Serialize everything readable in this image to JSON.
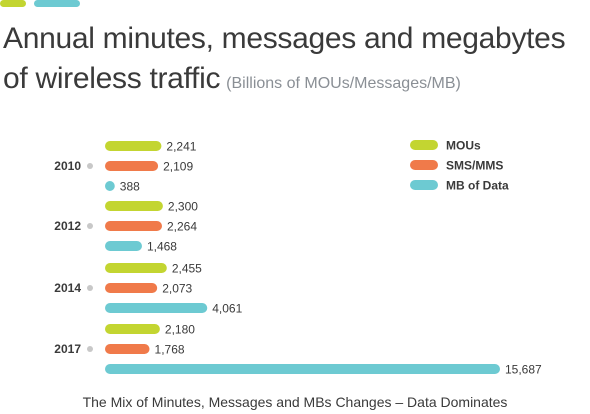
{
  "header": {
    "title_line1": "Annual minutes, messages and megabytes",
    "title_line2": "of wireless traffic",
    "subtitle": "(Billions of MOUs/Messages/MB)"
  },
  "footer": {
    "caption": "The Mix of Minutes, Messages and MBs Changes – Data Dominates"
  },
  "accent_colors": [
    "#c3d531",
    "#6dcad2"
  ],
  "chart_data": {
    "type": "bar",
    "orientation": "horizontal",
    "title": "Annual minutes, messages and megabytes of wireless traffic",
    "subtitle": "(Billions of MOUs/Messages/MB)",
    "categories": [
      "2010",
      "2012",
      "2014",
      "2017"
    ],
    "series": [
      {
        "name": "MOUs",
        "color": "#c3d531",
        "values": [
          2241,
          2300,
          2455,
          2180
        ],
        "labels": [
          "2,241",
          "2,300",
          "2,455",
          "2,180"
        ]
      },
      {
        "name": "SMS/MMS",
        "color": "#f07a4a",
        "values": [
          2109,
          2264,
          2073,
          1768
        ],
        "labels": [
          "2,109",
          "2,264",
          "2,073",
          "1,768"
        ]
      },
      {
        "name": "MB of Data",
        "color": "#6dcad2",
        "values": [
          388,
          1468,
          4061,
          15687
        ],
        "labels": [
          "388",
          "1,468",
          "4,061",
          "15,687"
        ]
      }
    ],
    "xlim": [
      0,
      15687
    ],
    "grid": false,
    "legend": "top-right"
  }
}
